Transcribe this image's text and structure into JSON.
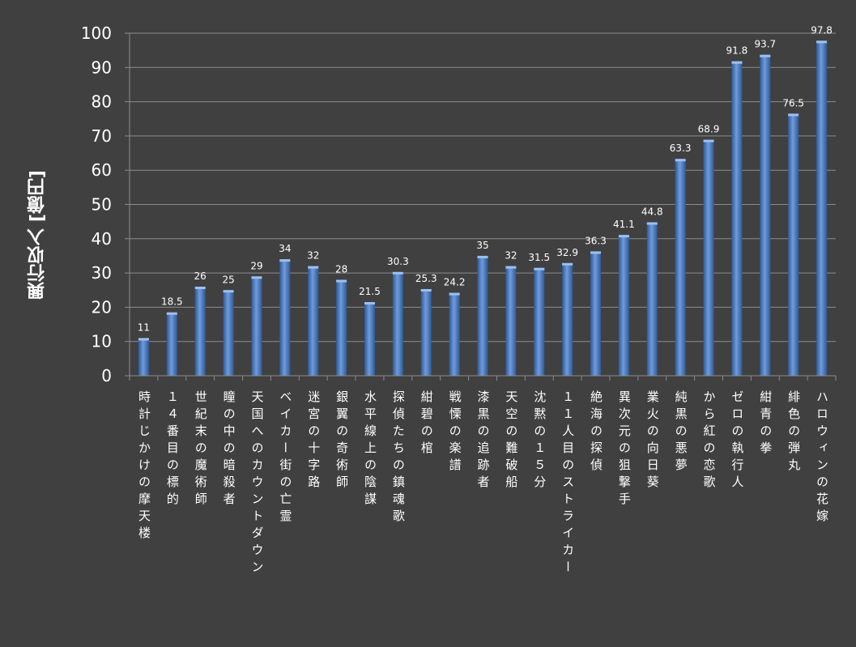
{
  "chart_data": {
    "type": "bar",
    "title": "",
    "xlabel": "",
    "ylabel": "興行収入 [億円]",
    "ylim": [
      0,
      100
    ],
    "yticks": [
      0,
      10,
      20,
      30,
      40,
      50,
      60,
      70,
      80,
      90,
      100
    ],
    "grid": true,
    "legend": "none",
    "bar_color": "#4f81bd",
    "background": "#404040",
    "categories": [
      "時計じかけの摩天楼",
      "１４番目の標的",
      "世紀末の魔術師",
      "瞳の中の暗殺者",
      "天国へのカウントダウン",
      "ベイカー街の亡霊",
      "迷宮の十字路",
      "銀翼の奇術師",
      "水平線上の陰謀",
      "探偵たちの鎮魂歌",
      "紺碧の棺",
      "戦慄の楽譜",
      "漆黒の追跡者",
      "天空の難破船",
      "沈黙の１５分",
      "１１人目のストライカー",
      "絶海の探偵",
      "異次元の狙撃手",
      "業火の向日葵",
      "純黒の悪夢",
      "から紅の恋歌",
      "ゼロの執行人",
      "紺青の拳",
      "緋色の弾丸",
      "ハロウィンの花嫁"
    ],
    "values": [
      11,
      18.5,
      26,
      25,
      29,
      34,
      32,
      28,
      21.5,
      30.3,
      25.3,
      24.2,
      35,
      32,
      31.5,
      32.9,
      36.3,
      41.1,
      44.8,
      63.3,
      68.9,
      91.8,
      93.7,
      76.5,
      97.8
    ],
    "data_labels": [
      "11",
      "18.5",
      "26",
      "25",
      "29",
      "34",
      "32",
      "28",
      "21.5",
      "30.3",
      "25.3",
      "24.2",
      "35",
      "32",
      "31.5",
      "32.9",
      "36.3",
      "41.1",
      "44.8",
      "63.3",
      "68.9",
      "91.8",
      "93.7",
      "76.5",
      "97.8"
    ]
  }
}
